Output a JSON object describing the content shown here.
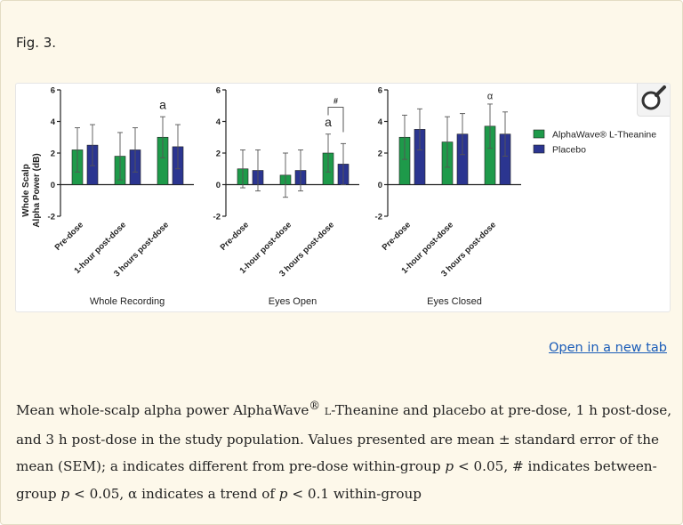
{
  "figure": {
    "label": "Fig. 3.",
    "open_link": "Open in a new tab",
    "caption": {
      "p1": "Mean whole-scalp alpha power AlphaWave",
      "reg": "®",
      "l": "L",
      "p2": "-Theanine and placebo at pre-dose, 1 h post-dose, and 3  h post-dose in the study population. Values presented are mean ± standard error of the mean (SEM); a indicates different from pre-dose within-group ",
      "p_var1": "p",
      "p3": " < 0.05, # indicates between-group ",
      "p_var2": "p",
      "p4": " < 0.05, α indicates a trend of ",
      "p_var3": "p",
      "p5": " < 0.1 within-group"
    }
  },
  "colors": {
    "theanine": "#1e9a4a",
    "placebo": "#2b3590",
    "axis": "#222222"
  },
  "chart_data": {
    "type": "bar",
    "ylabel_line1": "Whole Scalp",
    "ylabel_line2": "Alpha Power (dB)",
    "ylim": [
      -2,
      6
    ],
    "yticks": [
      -2,
      0,
      2,
      4,
      6
    ],
    "categories": [
      "Pre-dose",
      "1-hour post-dose",
      "3 hours post-dose"
    ],
    "legend": [
      {
        "name": "AlphaWave® L-Theanine",
        "color_key": "theanine"
      },
      {
        "name": "Placebo",
        "color_key": "placebo"
      }
    ],
    "panels": [
      {
        "title": "Whole  Recording",
        "series": [
          {
            "name": "AlphaWave® L-Theanine",
            "values": [
              2.2,
              1.8,
              3.0
            ],
            "errors": [
              1.4,
              1.5,
              1.3
            ]
          },
          {
            "name": "Placebo",
            "values": [
              2.5,
              2.2,
              2.4
            ],
            "errors": [
              1.3,
              1.4,
              1.4
            ]
          }
        ],
        "annotations": [
          {
            "text": "a",
            "category": 2,
            "y": 4.8
          }
        ],
        "bracket": null
      },
      {
        "title": "Eyes  Open",
        "series": [
          {
            "name": "AlphaWave® L-Theanine",
            "values": [
              1.0,
              0.6,
              2.0
            ],
            "errors": [
              1.2,
              1.4,
              1.2
            ]
          },
          {
            "name": "Placebo",
            "values": [
              0.9,
              0.9,
              1.3
            ],
            "errors": [
              1.3,
              1.3,
              1.3
            ]
          }
        ],
        "annotations": [
          {
            "text": "a",
            "category": 2,
            "y": 3.7
          }
        ],
        "bracket": {
          "text": "#",
          "category": 2,
          "y": 4.9
        }
      },
      {
        "title": "Eyes  Closed",
        "series": [
          {
            "name": "AlphaWave® L-Theanine",
            "values": [
              3.0,
              2.7,
              3.7
            ],
            "errors": [
              1.4,
              1.6,
              1.4
            ]
          },
          {
            "name": "Placebo",
            "values": [
              3.5,
              3.2,
              3.2
            ],
            "errors": [
              1.3,
              1.3,
              1.4
            ]
          }
        ],
        "annotations": [
          {
            "text": "α",
            "category": 2,
            "y": 5.4
          }
        ],
        "bracket": null
      }
    ]
  }
}
